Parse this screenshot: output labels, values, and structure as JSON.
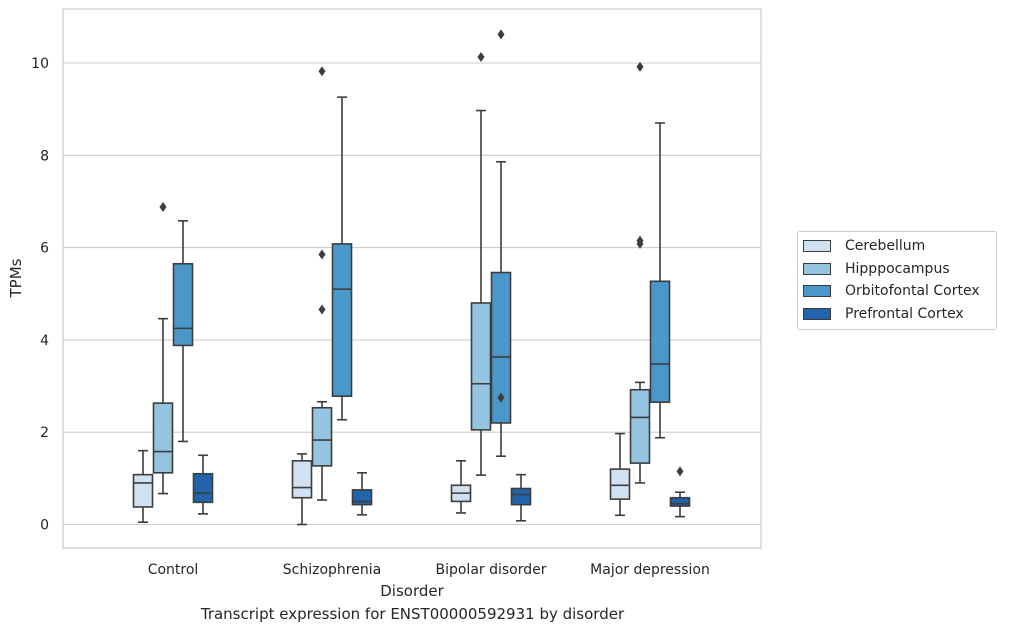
{
  "chart_data": {
    "type": "box",
    "caption": "Transcript expression for ENST00000592931 by disorder",
    "xlabel": "Disorder",
    "ylabel": "TPMs",
    "ylim": [
      -0.5,
      11.2
    ],
    "yticks": [
      0,
      2,
      4,
      6,
      8,
      10
    ],
    "grid": true,
    "legend_position": "right",
    "categories": [
      "Control",
      "Schizophrenia",
      "Bipolar disorder",
      "Major depression"
    ],
    "series": [
      {
        "name": "Cerebellum",
        "color": "#d0e1f2",
        "boxes": [
          {
            "whisker_low": 0.05,
            "q1": 0.38,
            "median": 0.9,
            "q3": 1.08,
            "whisker_high": 1.6,
            "outliers": []
          },
          {
            "whisker_low": 0.0,
            "q1": 0.58,
            "median": 0.8,
            "q3": 1.38,
            "whisker_high": 1.53,
            "outliers": []
          },
          {
            "whisker_low": 0.25,
            "q1": 0.5,
            "median": 0.68,
            "q3": 0.85,
            "whisker_high": 1.38,
            "outliers": []
          },
          {
            "whisker_low": 0.2,
            "q1": 0.55,
            "median": 0.85,
            "q3": 1.2,
            "whisker_high": 1.97,
            "outliers": []
          }
        ]
      },
      {
        "name": "Hipppocampus",
        "color": "#94c4df",
        "boxes": [
          {
            "whisker_low": 0.67,
            "q1": 1.12,
            "median": 1.58,
            "q3": 2.63,
            "whisker_high": 4.46,
            "outliers": [
              6.88
            ]
          },
          {
            "whisker_low": 0.53,
            "q1": 1.27,
            "median": 1.83,
            "q3": 2.53,
            "whisker_high": 2.66,
            "outliers": [
              4.66,
              5.85,
              9.82
            ]
          },
          {
            "whisker_low": 1.07,
            "q1": 2.05,
            "median": 3.05,
            "q3": 4.8,
            "whisker_high": 8.97,
            "outliers": [
              10.13
            ]
          },
          {
            "whisker_low": 0.9,
            "q1": 1.33,
            "median": 2.32,
            "q3": 2.92,
            "whisker_high": 3.08,
            "outliers": [
              6.08,
              6.15,
              9.92
            ]
          }
        ]
      },
      {
        "name": "Orbitofontal Cortex",
        "color": "#4a98c9",
        "boxes": [
          {
            "whisker_low": 1.8,
            "q1": 3.88,
            "median": 4.25,
            "q3": 5.65,
            "whisker_high": 6.58,
            "outliers": []
          },
          {
            "whisker_low": 2.27,
            "q1": 2.78,
            "median": 5.1,
            "q3": 6.08,
            "whisker_high": 9.26,
            "outliers": []
          },
          {
            "whisker_low": 1.48,
            "q1": 2.2,
            "median": 3.63,
            "q3": 5.46,
            "whisker_high": 7.86,
            "outliers": [
              2.75,
              10.62
            ]
          },
          {
            "whisker_low": 1.88,
            "q1": 2.65,
            "median": 3.48,
            "q3": 5.27,
            "whisker_high": 8.7,
            "outliers": []
          }
        ]
      },
      {
        "name": "Prefrontal Cortex",
        "color": "#2164ab",
        "boxes": [
          {
            "whisker_low": 0.23,
            "q1": 0.48,
            "median": 0.68,
            "q3": 1.1,
            "whisker_high": 1.5,
            "outliers": []
          },
          {
            "whisker_low": 0.21,
            "q1": 0.43,
            "median": 0.5,
            "q3": 0.75,
            "whisker_high": 1.12,
            "outliers": []
          },
          {
            "whisker_low": 0.08,
            "q1": 0.43,
            "median": 0.65,
            "q3": 0.78,
            "whisker_high": 1.08,
            "outliers": []
          },
          {
            "whisker_low": 0.17,
            "q1": 0.4,
            "median": 0.45,
            "q3": 0.58,
            "whisker_high": 0.7,
            "outliers": [
              1.15
            ]
          }
        ]
      }
    ]
  }
}
